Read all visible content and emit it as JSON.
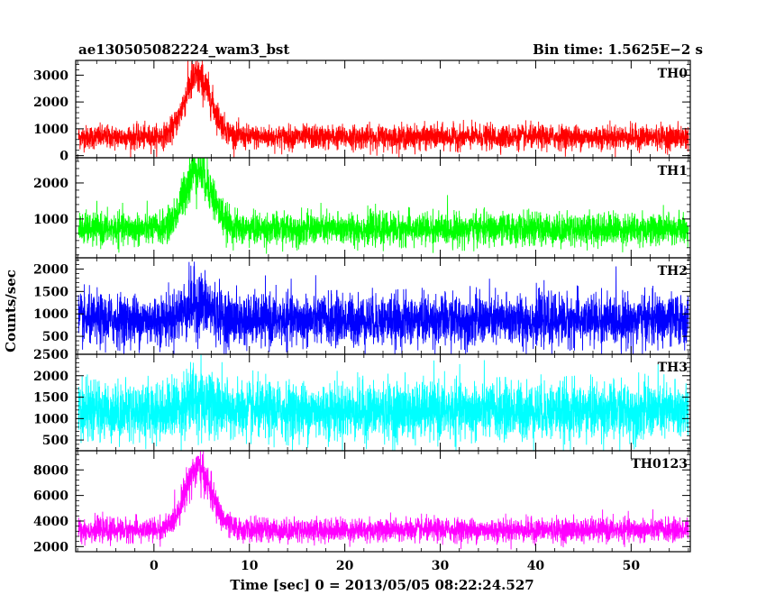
{
  "header": {
    "left_title": "ae130505082224_wam3_bst",
    "right_title": "Bin time: 1.5625E−2 s"
  },
  "chart_data": {
    "type": "line",
    "xlabel": "Time [sec] 0 = 2013/05/05 08:22:24.527",
    "ylabel": "Counts/sec",
    "xlim": [
      -8.2,
      56.2
    ],
    "data_range": [
      -7.9,
      56.0
    ],
    "x_ticks": [
      0,
      10,
      20,
      30,
      40,
      50
    ],
    "burst": {
      "center": 4.5,
      "rise_sigma": 1.3,
      "decay_sigma": 1.5
    },
    "panels": [
      {
        "name": "TH0",
        "color": "#ff0000",
        "ylim": [
          -80,
          3550
        ],
        "yticks": [
          0,
          1000,
          2000,
          3000
        ],
        "baseline": 690,
        "noise": 220,
        "burst_peak": 2250
      },
      {
        "name": "TH1",
        "color": "#00ff00",
        "ylim": [
          -80,
          2700
        ],
        "yticks": [
          1000,
          2000
        ],
        "baseline": 720,
        "noise": 220,
        "burst_peak": 1700
      },
      {
        "name": "TH2",
        "color": "#0000ff",
        "ylim": [
          100,
          2250
        ],
        "yticks": [
          500,
          1000,
          1500,
          2000
        ],
        "baseline": 860,
        "noise": 280,
        "burst_peak": 380
      },
      {
        "name": "TH3",
        "color": "#00ffff",
        "ylim": [
          250,
          2500
        ],
        "yticks": [
          500,
          1000,
          1500,
          2000,
          2500
        ],
        "baseline": 1180,
        "noise": 330,
        "burst_peak": 280
      },
      {
        "name": "TH0123",
        "color": "#ff00ff",
        "ylim": [
          1600,
          9500
        ],
        "yticks": [
          2000,
          4000,
          6000,
          8000
        ],
        "baseline": 3300,
        "noise": 450,
        "burst_peak": 4800
      }
    ]
  }
}
